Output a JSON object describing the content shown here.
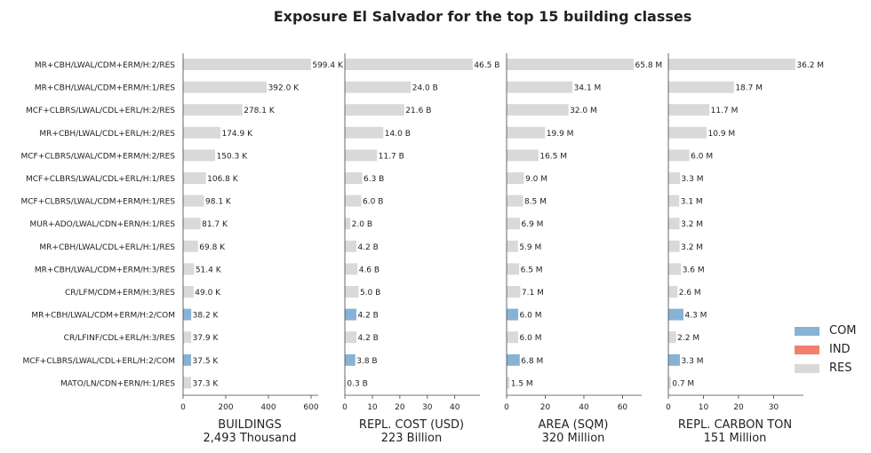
{
  "chart_data": {
    "type": "bar",
    "title": "Exposure El Salvador for the top 15 building classes",
    "categories": [
      "MR+CBH/LWAL/CDM+ERM/H:2/RES",
      "MR+CBH/LWAL/CDM+ERM/H:1/RES",
      "MCF+CLBRS/LWAL/CDL+ERL/H:2/RES",
      "MR+CBH/LWAL/CDL+ERL/H:2/RES",
      "MCF+CLBRS/LWAL/CDM+ERM/H:2/RES",
      "MCF+CLBRS/LWAL/CDL+ERL/H:1/RES",
      "MCF+CLBRS/LWAL/CDM+ERM/H:1/RES",
      "MUR+ADO/LWAL/CDN+ERN/H:1/RES",
      "MR+CBH/LWAL/CDL+ERL/H:1/RES",
      "MR+CBH/LWAL/CDM+ERM/H:3/RES",
      "CR/LFM/CDM+ERM/H:3/RES",
      "MR+CBH/LWAL/CDM+ERM/H:2/COM",
      "CR/LFINF/CDL+ERL/H:3/RES",
      "MCF+CLBRS/LWAL/CDL+ERL/H:2/COM",
      "MATO/LN/CDN+ERN/H:1/RES"
    ],
    "occupancy": [
      "RES",
      "RES",
      "RES",
      "RES",
      "RES",
      "RES",
      "RES",
      "RES",
      "RES",
      "RES",
      "RES",
      "COM",
      "RES",
      "COM",
      "RES"
    ],
    "colors": {
      "COM": "#87b2d4",
      "IND": "#f47f6f",
      "RES": "#d9d9d9"
    },
    "legend": {
      "placement": "right",
      "entries": [
        "COM",
        "IND",
        "RES"
      ]
    },
    "grid": false,
    "panels": [
      {
        "xlabel": "BUILDINGS",
        "total": "2,493 Thousand",
        "xlim": [
          0,
          625
        ],
        "ticks": [
          0,
          200,
          400,
          600
        ],
        "values": [
          599.4,
          392.0,
          278.1,
          174.9,
          150.3,
          106.8,
          98.1,
          81.7,
          69.8,
          51.4,
          49.0,
          38.2,
          37.9,
          37.5,
          37.3
        ],
        "labels": [
          "599.4 K",
          "392.0 K",
          "278.1 K",
          "174.9 K",
          "150.3 K",
          "106.8 K",
          "98.1 K",
          "81.7 K",
          "69.8 K",
          "51.4 K",
          "49.0 K",
          "38.2 K",
          "37.9 K",
          "37.5 K",
          "37.3 K"
        ]
      },
      {
        "xlabel": "REPL. COST (USD)",
        "total": "223 Billion",
        "xlim": [
          0,
          48.5
        ],
        "ticks": [
          0,
          10,
          20,
          30,
          40
        ],
        "values": [
          46.5,
          24.0,
          21.6,
          14.0,
          11.7,
          6.3,
          6.0,
          2.0,
          4.2,
          4.6,
          5.0,
          4.2,
          4.2,
          3.8,
          0.3
        ],
        "labels": [
          "46.5 B",
          "24.0 B",
          "21.6 B",
          "14.0 B",
          "11.7 B",
          "6.3 B",
          "6.0 B",
          "2.0 B",
          "4.2 B",
          "4.6 B",
          "5.0 B",
          "4.2 B",
          "4.2 B",
          "3.8 B",
          "0.3 B"
        ]
      },
      {
        "xlabel": "AREA (SQM)",
        "total": "320 Million",
        "xlim": [
          0,
          69
        ],
        "ticks": [
          0,
          20,
          40,
          60
        ],
        "values": [
          65.8,
          34.1,
          32.0,
          19.9,
          16.5,
          9.0,
          8.5,
          6.9,
          5.9,
          6.5,
          7.1,
          6.0,
          6.0,
          6.8,
          1.5
        ],
        "labels": [
          "65.8 M",
          "34.1 M",
          "32.0 M",
          "19.9 M",
          "16.5 M",
          "9.0 M",
          "8.5 M",
          "6.9 M",
          "5.9 M",
          "6.5 M",
          "7.1 M",
          "6.0 M",
          "6.0 M",
          "6.8 M",
          "1.5 M"
        ]
      },
      {
        "xlabel": "REPL. CARBON TON",
        "total": "151 Million",
        "xlim": [
          0,
          38
        ],
        "ticks": [
          0,
          10,
          20,
          30
        ],
        "values": [
          36.2,
          18.7,
          11.7,
          10.9,
          6.0,
          3.3,
          3.1,
          3.2,
          3.2,
          3.6,
          2.6,
          4.3,
          2.2,
          3.3,
          0.7
        ],
        "labels": [
          "36.2 M",
          "18.7 M",
          "11.7 M",
          "10.9 M",
          "6.0 M",
          "3.3 M",
          "3.1 M",
          "3.2 M",
          "3.2 M",
          "3.6 M",
          "2.6 M",
          "4.3 M",
          "2.2 M",
          "3.3 M",
          "0.7 M"
        ]
      }
    ]
  }
}
